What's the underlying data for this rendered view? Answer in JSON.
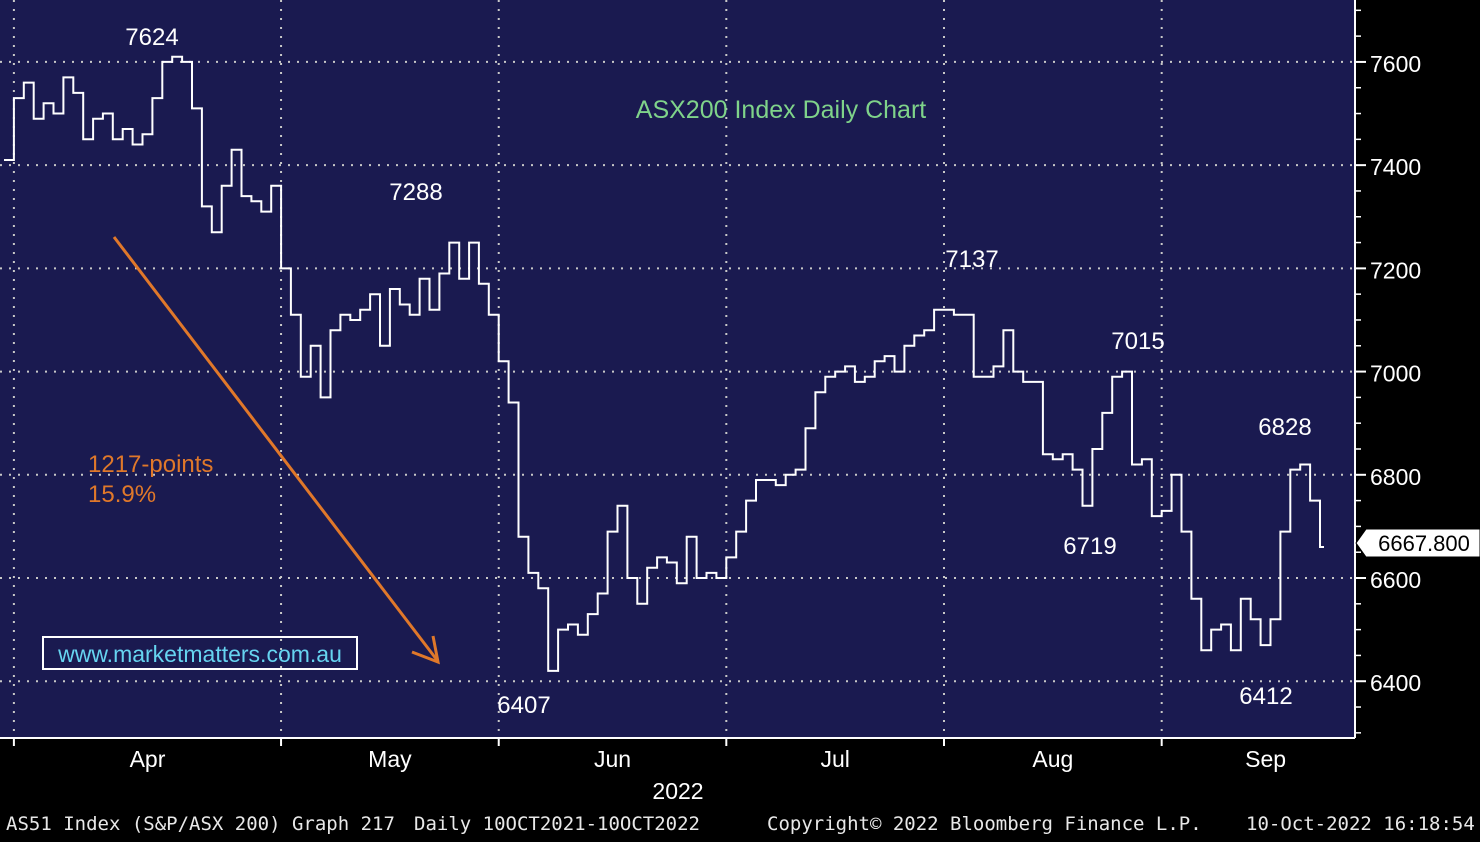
{
  "chart_data": {
    "type": "ohlc",
    "title": "ASX200 Index Daily Chart",
    "x_month_labels": [
      "Apr",
      "May",
      "Jun",
      "Jul",
      "Aug",
      "Sep"
    ],
    "year_label": "2022",
    "y_ticks": [
      6400,
      6600,
      6800,
      7000,
      7200,
      7400,
      7600
    ],
    "ylim": [
      6290,
      7720
    ],
    "grid": true,
    "last_price_label": "6667.800",
    "callouts": [
      "7624",
      "7288",
      "6407",
      "7137",
      "7015",
      "6719",
      "6828",
      "6412"
    ],
    "annotation": {
      "points": "1217-points",
      "percent": "15.9%"
    },
    "watermark": "www.marketmatters.com.au",
    "closes": [
      7410,
      7530,
      7560,
      7490,
      7520,
      7500,
      7570,
      7540,
      7450,
      7490,
      7500,
      7450,
      7470,
      7440,
      7460,
      7530,
      7600,
      7610,
      7600,
      7510,
      7320,
      7270,
      7360,
      7430,
      7340,
      7330,
      7310,
      7360,
      7200,
      7110,
      6990,
      7050,
      6950,
      7080,
      7110,
      7100,
      7120,
      7150,
      7050,
      7160,
      7130,
      7110,
      7180,
      7120,
      7190,
      7250,
      7180,
      7250,
      7170,
      7110,
      7020,
      6940,
      6680,
      6610,
      6580,
      6420,
      6500,
      6510,
      6490,
      6530,
      6570,
      6690,
      6740,
      6600,
      6550,
      6620,
      6640,
      6630,
      6590,
      6680,
      6600,
      6610,
      6600,
      6640,
      6690,
      6750,
      6790,
      6790,
      6780,
      6800,
      6810,
      6890,
      6960,
      6990,
      7000,
      7010,
      6980,
      6990,
      7020,
      7030,
      7000,
      7050,
      7070,
      7080,
      7120,
      7120,
      7110,
      7110,
      6990,
      6990,
      7010,
      7080,
      7000,
      6980,
      6980,
      6840,
      6830,
      6840,
      6810,
      6740,
      6850,
      6920,
      6990,
      7000,
      6820,
      6830,
      6720,
      6730,
      6800,
      6690,
      6560,
      6460,
      6500,
      6510,
      6460,
      6560,
      6520,
      6470,
      6520,
      6690,
      6810,
      6820,
      6750,
      6660
    ],
    "xdomain": [
      0,
      133
    ]
  },
  "footer": {
    "ticker": "AS51 Index (S&P/ASX 200) Graph 217",
    "range": "Daily 10OCT2021-10OCT2022",
    "copyright": "Copyright© 2022 Bloomberg Finance L.P.",
    "timestamp": "10-Oct-2022 16:18:54"
  },
  "colors": {
    "plot_bg": "#1a1a50",
    "price_line": "#ffffff",
    "grid": "#c8c8c8",
    "title": "#7fd38a",
    "annotation": "#e0782a",
    "last_price_bg": "#ffffff"
  }
}
